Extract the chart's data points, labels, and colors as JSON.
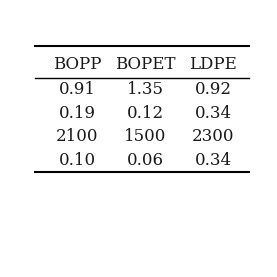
{
  "columns": [
    "BOPP",
    "BOPET",
    "LDPE"
  ],
  "rows": [
    [
      "0.91",
      "1.35",
      "0.92"
    ],
    [
      "0.19",
      "0.12",
      "0.34"
    ],
    [
      "2100",
      "1500",
      "2300"
    ],
    [
      "0.10",
      "0.06",
      "0.34"
    ]
  ],
  "header_fontsize": 12,
  "cell_fontsize": 12,
  "background_color": "#ffffff",
  "line_color": "#000000",
  "text_color": "#1a1a1a",
  "fig_width": 2.77,
  "fig_height": 2.77,
  "dpi": 100
}
